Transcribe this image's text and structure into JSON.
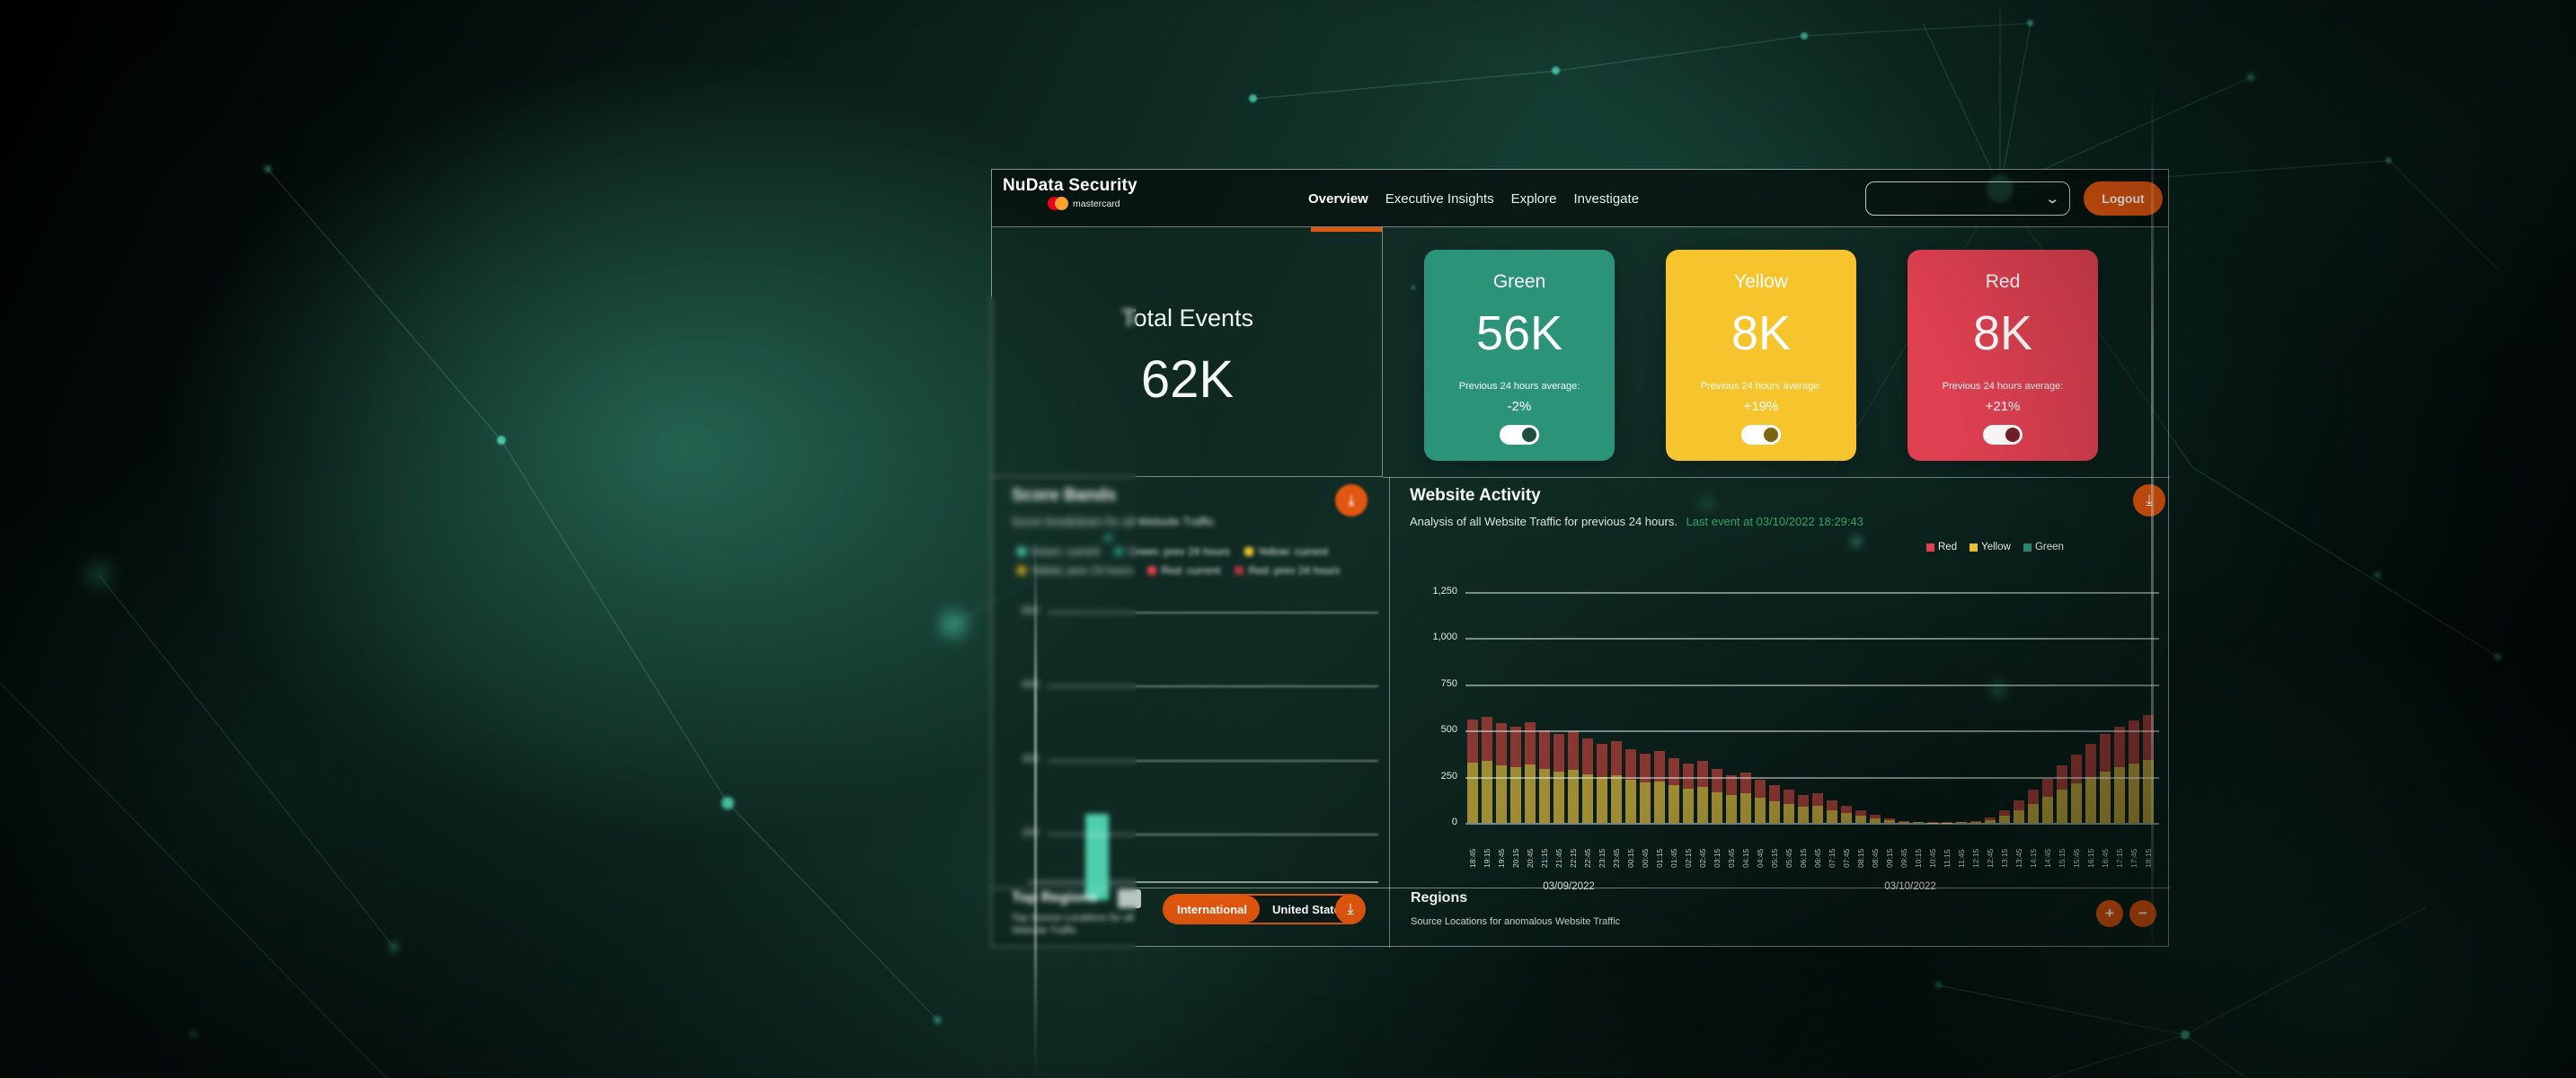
{
  "header": {
    "brand": {
      "title": "NuData Security",
      "logo_text": "mastercard"
    },
    "nav": [
      {
        "label": "Overview",
        "active": true
      },
      {
        "label": "Executive Insights",
        "active": false
      },
      {
        "label": "Explore",
        "active": false
      },
      {
        "label": "Investigate",
        "active": false
      }
    ],
    "account_dropdown": {
      "value": ""
    },
    "logout_label": "Logout"
  },
  "summary": {
    "total_events": {
      "label": "Total Events",
      "value": "62K"
    },
    "cards": [
      {
        "label": "Green",
        "value": "56K",
        "avg_label": "Previous 24 hours average:",
        "delta": "-2%",
        "color": "#2b9478",
        "knob_color": "#1d4f41",
        "toggle_on": true
      },
      {
        "label": "Yellow",
        "value": "8K",
        "avg_label": "Previous 24 hours average:",
        "delta": "+19%",
        "color": "#f6c52e",
        "knob_color": "#7c6410",
        "toggle_on": true
      },
      {
        "label": "Red",
        "value": "8K",
        "avg_label": "Previous 24 hours average:",
        "delta": "+21%",
        "color": "#e04152",
        "knob_color": "#77202b",
        "toggle_on": true
      }
    ]
  },
  "score_bands": {
    "title": "Score Bands",
    "subtitle": "Score breakdown for all Website Traffic",
    "legend": [
      {
        "label": "Green: current",
        "color": "#4ecfac"
      },
      {
        "label": "Green: prev 24 hours",
        "color": "#2b9478"
      },
      {
        "label": "Yellow: current",
        "color": "#f6c52e"
      },
      {
        "label": "Yellow: prev 24 hours",
        "color": "#d8a81f"
      },
      {
        "label": "Red: current",
        "color": "#e04152"
      },
      {
        "label": "Red: prev 24 hours",
        "color": "#b03341"
      }
    ]
  },
  "website_activity": {
    "title": "Website Activity",
    "subtitle": "Analysis of all Website Traffic for previous 24 hours.",
    "last_event": "Last event at 03/10/2022 18:29:43",
    "last_event_color": "#2fa56a",
    "legend": [
      {
        "label": "Red",
        "color": "#e04152"
      },
      {
        "label": "Yellow",
        "color": "#f6c52e"
      },
      {
        "label": "Green",
        "color": "#2b9478"
      }
    ]
  },
  "top_regions": {
    "title": "Top Regions",
    "subtitle_line1": "Top Source Locations for all",
    "subtitle_line2": "Website Traffic",
    "toggle": [
      {
        "label": "International",
        "active": true
      },
      {
        "label": "United States",
        "active": false
      }
    ]
  },
  "regions": {
    "title": "Regions",
    "subtitle": "Source Locations for anomalous Website Traffic",
    "zoom_in": "+",
    "zoom_out": "−"
  },
  "icons": {
    "download": "⤓",
    "chevron_down": "⌄"
  },
  "accent_color": "#e0570f",
  "chart_data": [
    {
      "id": "score-bands",
      "type": "bar",
      "title": "Score Bands",
      "y_ticks": [
        "800",
        "600",
        "400",
        "200"
      ],
      "grid": true,
      "visible_bars": [
        {
          "x_percent": 24,
          "value": 190,
          "color": "#4ecfac"
        }
      ]
    },
    {
      "id": "website-activity",
      "type": "bar",
      "stacked": true,
      "title": "Website Activity",
      "ylim": [
        0,
        1250
      ],
      "y_ticks": [
        "1,250",
        "1,000",
        "750",
        "500",
        "250",
        "0"
      ],
      "grid": true,
      "legend_position": "top-right",
      "x": [
        "18:45",
        "19:15",
        "19:45",
        "20:15",
        "20:45",
        "21:15",
        "21:45",
        "22:15",
        "22:45",
        "23:15",
        "23:45",
        "00:15",
        "00:45",
        "01:15",
        "01:45",
        "02:15",
        "02:45",
        "03:15",
        "03:45",
        "04:15",
        "04:45",
        "05:15",
        "05:45",
        "06:15",
        "06:45",
        "07:15",
        "07:45",
        "08:15",
        "08:45",
        "09:15",
        "09:45",
        "10:15",
        "10:45",
        "11:15",
        "11:45",
        "12:15",
        "12:45",
        "13:15",
        "13:45",
        "14:15",
        "14:45",
        "15:15",
        "15:45",
        "16:15",
        "16:45",
        "17:15",
        "17:45",
        "18:15"
      ],
      "x_axis_dates": [
        "03/09/2022",
        "03/10/2022"
      ],
      "series": [
        {
          "name": "Yellow",
          "color": "#c4a73a",
          "values": [
            325,
            334,
            313,
            302,
            316,
            290,
            278,
            287,
            264,
            249,
            258,
            232,
            218,
            226,
            203,
            186,
            194,
            168,
            151,
            160,
            136,
            119,
            104,
            87,
            93,
            70,
            55,
            41,
            26,
            15,
            7,
            3,
            2,
            2,
            3,
            6,
            17,
            41,
            70,
            104,
            139,
            180,
            215,
            249,
            278,
            302,
            322,
            339
          ]
        },
        {
          "name": "Red",
          "color": "#ac3e38",
          "values": [
            235,
            241,
            227,
            218,
            229,
            210,
            202,
            208,
            191,
            181,
            187,
            168,
            157,
            164,
            147,
            134,
            141,
            122,
            109,
            115,
            99,
            86,
            76,
            63,
            67,
            50,
            40,
            29,
            19,
            10,
            5,
            3,
            2,
            1,
            2,
            4,
            13,
            29,
            50,
            76,
            101,
            130,
            155,
            181,
            202,
            218,
            233,
            246
          ]
        }
      ]
    }
  ]
}
